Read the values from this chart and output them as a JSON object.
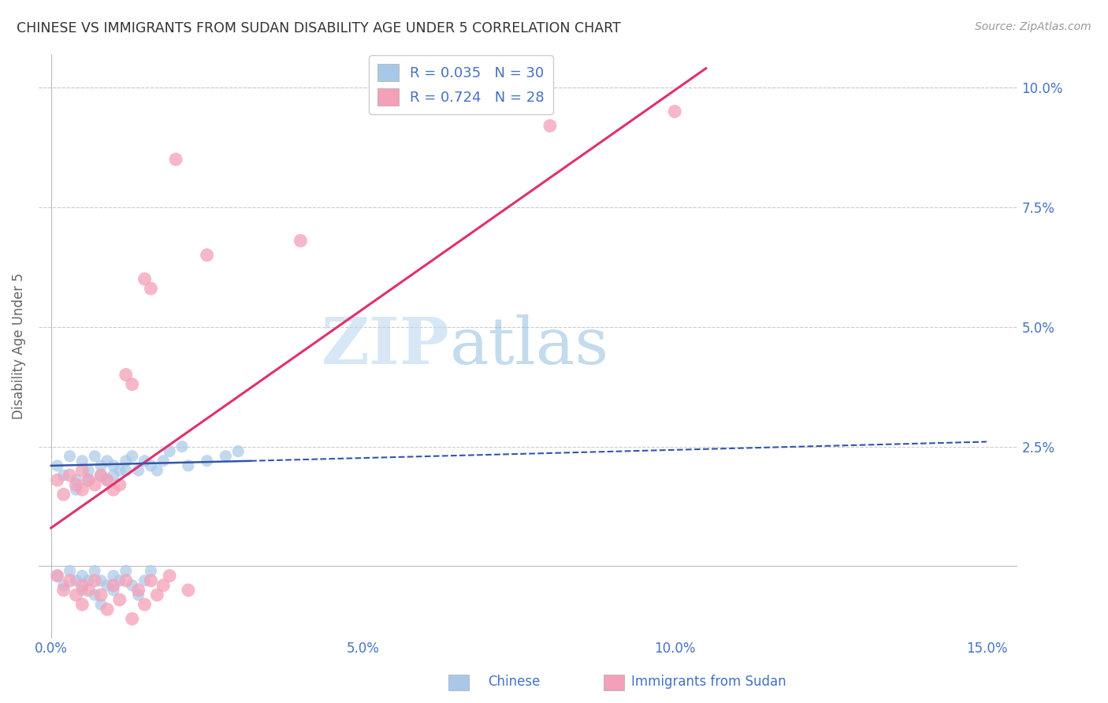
{
  "title": "CHINESE VS IMMIGRANTS FROM SUDAN DISABILITY AGE UNDER 5 CORRELATION CHART",
  "source": "Source: ZipAtlas.com",
  "ylabel": "Disability Age Under 5",
  "xlim": [
    -0.002,
    0.155
  ],
  "ylim": [
    -0.015,
    0.107
  ],
  "xticks": [
    0.0,
    0.05,
    0.1,
    0.15
  ],
  "xticklabels": [
    "0.0%",
    "5.0%",
    "10.0%",
    "15.0%"
  ],
  "yticks": [
    0.025,
    0.05,
    0.075,
    0.1
  ],
  "yticklabels": [
    "2.5%",
    "5.0%",
    "7.5%",
    "10.0%"
  ],
  "legend_r_chinese": "R = 0.035",
  "legend_n_chinese": "N = 30",
  "legend_r_sudan": "R = 0.724",
  "legend_n_sudan": "N = 28",
  "chinese_color": "#a8c8e8",
  "sudan_color": "#f4a0b8",
  "chinese_line_color": "#3355aa",
  "sudan_line_color": "#e03070",
  "watermark_zip": "ZIP",
  "watermark_atlas": "atlas",
  "background_color": "#ffffff",
  "grid_color": "#cccccc",
  "label_color": "#4472c4",
  "chinese_scatter": [
    [
      0.001,
      0.021
    ],
    [
      0.002,
      0.019
    ],
    [
      0.003,
      0.023
    ],
    [
      0.004,
      0.018
    ],
    [
      0.004,
      0.016
    ],
    [
      0.005,
      0.022
    ],
    [
      0.006,
      0.02
    ],
    [
      0.006,
      0.018
    ],
    [
      0.007,
      0.023
    ],
    [
      0.008,
      0.021
    ],
    [
      0.008,
      0.019
    ],
    [
      0.009,
      0.022
    ],
    [
      0.009,
      0.018
    ],
    [
      0.01,
      0.021
    ],
    [
      0.01,
      0.019
    ],
    [
      0.011,
      0.02
    ],
    [
      0.012,
      0.022
    ],
    [
      0.012,
      0.02
    ],
    [
      0.013,
      0.023
    ],
    [
      0.014,
      0.02
    ],
    [
      0.015,
      0.022
    ],
    [
      0.016,
      0.021
    ],
    [
      0.017,
      0.02
    ],
    [
      0.018,
      0.022
    ],
    [
      0.019,
      0.024
    ],
    [
      0.021,
      0.025
    ],
    [
      0.022,
      0.021
    ],
    [
      0.025,
      0.022
    ],
    [
      0.028,
      0.023
    ],
    [
      0.03,
      0.024
    ]
  ],
  "chinese_scatter_below": [
    [
      0.001,
      -0.002
    ],
    [
      0.002,
      -0.004
    ],
    [
      0.003,
      -0.001
    ],
    [
      0.004,
      -0.003
    ],
    [
      0.005,
      -0.005
    ],
    [
      0.005,
      -0.002
    ],
    [
      0.006,
      -0.003
    ],
    [
      0.007,
      -0.001
    ],
    [
      0.007,
      -0.006
    ],
    [
      0.008,
      -0.003
    ],
    [
      0.008,
      -0.008
    ],
    [
      0.009,
      -0.004
    ],
    [
      0.01,
      -0.002
    ],
    [
      0.01,
      -0.005
    ],
    [
      0.011,
      -0.003
    ],
    [
      0.012,
      -0.001
    ],
    [
      0.013,
      -0.004
    ],
    [
      0.014,
      -0.006
    ],
    [
      0.015,
      -0.003
    ],
    [
      0.016,
      -0.001
    ]
  ],
  "sudan_scatter": [
    [
      0.001,
      0.018
    ],
    [
      0.002,
      0.015
    ],
    [
      0.003,
      0.019
    ],
    [
      0.004,
      0.017
    ],
    [
      0.005,
      0.016
    ],
    [
      0.005,
      0.02
    ],
    [
      0.006,
      0.018
    ],
    [
      0.007,
      0.017
    ],
    [
      0.008,
      0.019
    ],
    [
      0.009,
      0.018
    ],
    [
      0.01,
      0.016
    ],
    [
      0.011,
      0.017
    ],
    [
      0.012,
      0.04
    ],
    [
      0.013,
      0.038
    ],
    [
      0.015,
      0.06
    ],
    [
      0.016,
      0.058
    ],
    [
      0.02,
      0.085
    ],
    [
      0.025,
      0.065
    ],
    [
      0.04,
      0.068
    ],
    [
      0.08,
      0.092
    ],
    [
      0.1,
      0.095
    ]
  ],
  "sudan_scatter_below": [
    [
      0.001,
      -0.002
    ],
    [
      0.002,
      -0.005
    ],
    [
      0.003,
      -0.003
    ],
    [
      0.004,
      -0.006
    ],
    [
      0.005,
      -0.004
    ],
    [
      0.005,
      -0.008
    ],
    [
      0.006,
      -0.005
    ],
    [
      0.007,
      -0.003
    ],
    [
      0.008,
      -0.006
    ],
    [
      0.009,
      -0.009
    ],
    [
      0.01,
      -0.004
    ],
    [
      0.011,
      -0.007
    ],
    [
      0.012,
      -0.003
    ],
    [
      0.013,
      -0.011
    ],
    [
      0.014,
      -0.005
    ],
    [
      0.015,
      -0.008
    ],
    [
      0.016,
      -0.003
    ],
    [
      0.017,
      -0.006
    ],
    [
      0.018,
      -0.004
    ],
    [
      0.019,
      -0.002
    ],
    [
      0.022,
      -0.005
    ]
  ],
  "chinese_solid_line": [
    [
      0.0,
      0.021
    ],
    [
      0.032,
      0.022
    ]
  ],
  "chinese_dash_line": [
    [
      0.032,
      0.022
    ],
    [
      0.15,
      0.026
    ]
  ],
  "sudan_line": [
    [
      0.0,
      0.008
    ],
    [
      0.105,
      0.104
    ]
  ],
  "dot_size_chinese": 120,
  "dot_size_sudan": 150
}
